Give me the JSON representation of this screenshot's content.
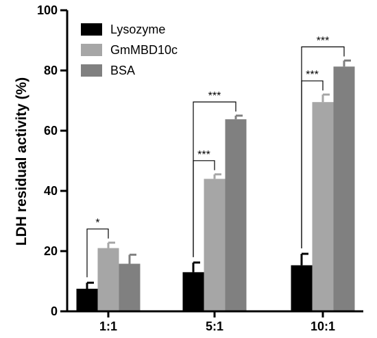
{
  "chart_data": {
    "type": "bar",
    "ylabel": "LDH residual activity (%)",
    "xlabel": "",
    "ylim": [
      0,
      100
    ],
    "yticks": [
      0,
      20,
      40,
      60,
      80,
      100
    ],
    "categories": [
      "1:1",
      "5:1",
      "10:1"
    ],
    "series": [
      {
        "name": "Lysozyme",
        "color": "#000000",
        "values": [
          7.5,
          13.0,
          15.3
        ],
        "errors": [
          2.0,
          3.2,
          3.8
        ]
      },
      {
        "name": "GmMBD10c",
        "color": "#a6a6a6",
        "values": [
          21.0,
          44.0,
          69.5
        ],
        "errors": [
          1.8,
          1.5,
          2.5
        ]
      },
      {
        "name": "BSA",
        "color": "#808080",
        "values": [
          15.8,
          63.8,
          81.3
        ],
        "errors": [
          3.0,
          1.2,
          2.0
        ]
      }
    ],
    "legend": "top-left",
    "significance": [
      {
        "group": 0,
        "from": 0,
        "to": 1,
        "level": 0,
        "label": "*"
      },
      {
        "group": 1,
        "from": 0,
        "to": 1,
        "level": 0,
        "label": "***"
      },
      {
        "group": 1,
        "from": 0,
        "to": 2,
        "level": 1,
        "label": "***"
      },
      {
        "group": 2,
        "from": 0,
        "to": 1,
        "level": 0,
        "label": "***"
      },
      {
        "group": 2,
        "from": 0,
        "to": 2,
        "level": 1,
        "label": "***"
      }
    ]
  }
}
